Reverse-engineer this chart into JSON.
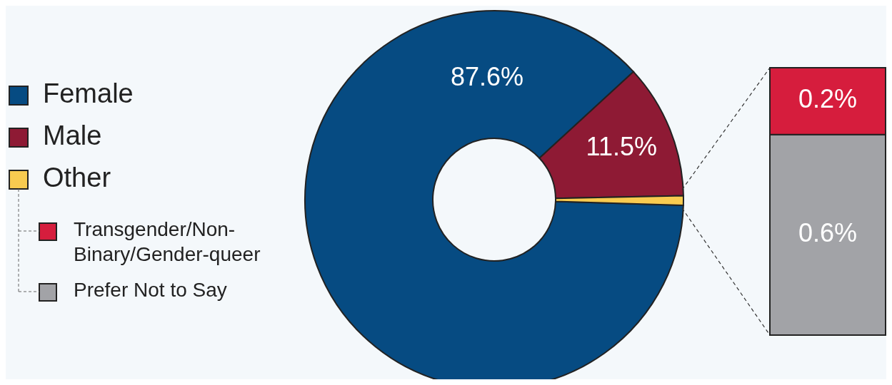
{
  "chart_data": [
    {
      "type": "donut",
      "categories": [
        "Female",
        "Male",
        "Other"
      ],
      "values": [
        87.6,
        11.5,
        0.8
      ],
      "colors": [
        "#064b82",
        "#8e1a34",
        "#f8cb50"
      ],
      "value_labels": [
        "87.6%",
        "11.5%",
        null
      ],
      "legend": "left"
    },
    {
      "type": "bar",
      "stacked": true,
      "categories": [
        null
      ],
      "series": [
        {
          "name": "Prefer Not to Say",
          "color": "#a2a3a7",
          "values": [
            0.6
          ],
          "value_labels": [
            "0.6%"
          ]
        },
        {
          "name": "Transgender/Non-Binary/Gender-queer",
          "color": "#d61d3d",
          "values": [
            0.2
          ],
          "value_labels": [
            "0.2%"
          ]
        }
      ],
      "legend": "left"
    }
  ]
}
